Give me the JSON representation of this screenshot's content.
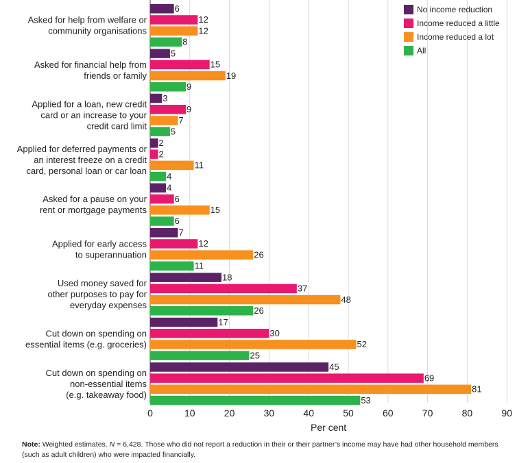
{
  "chart_data": {
    "type": "bar",
    "orientation": "horizontal",
    "categories": [
      "Asked for help from welfare or\ncommunity organisations",
      "Asked for financial help from\nfriends or family",
      "Applied for a loan, new credit\ncard or an increase to your\ncredit card limit",
      "Applied for deferred payments or\nan interest freeze on a credit\ncard, personal loan or car loan",
      "Asked for a pause on your\nrent or mortgage payments",
      "Applied for early access\nto superannuation",
      "Used money saved for\nother purposes to pay for\neveryday expenses",
      "Cut down on spending on\nessential items (e.g. groceries)",
      "Cut down on spending on\nnon-essential items\n(e.g. takeaway food)"
    ],
    "series": [
      {
        "name": "No income reduction",
        "color": "#5b2366",
        "values": [
          6,
          5,
          3,
          2,
          4,
          7,
          18,
          17,
          45
        ]
      },
      {
        "name": "Income reduced a little",
        "color": "#e8196e",
        "values": [
          12,
          15,
          9,
          2,
          6,
          12,
          37,
          30,
          69
        ]
      },
      {
        "name": "Income reduced a lot",
        "color": "#f7901e",
        "values": [
          12,
          19,
          7,
          11,
          15,
          26,
          48,
          52,
          81
        ]
      },
      {
        "name": "All",
        "color": "#2eb34a",
        "values": [
          8,
          9,
          5,
          4,
          6,
          11,
          26,
          25,
          53
        ]
      }
    ],
    "xlabel": "Per cent",
    "ylabel": "",
    "xlim": [
      0,
      90
    ],
    "xticks": [
      "0",
      "10",
      "20",
      "30",
      "40",
      "50",
      "60",
      "70",
      "80",
      "90"
    ],
    "grid": "vertical",
    "legend": "top-right"
  },
  "note": {
    "label": "Note:",
    "text_before": " Weighted estimates. ",
    "n_symbol": "N",
    "text_after": " = 6,428. Those who did not report a reduction in their or their partner’s income may have had other household members (such as adult children) who were impacted financially."
  }
}
